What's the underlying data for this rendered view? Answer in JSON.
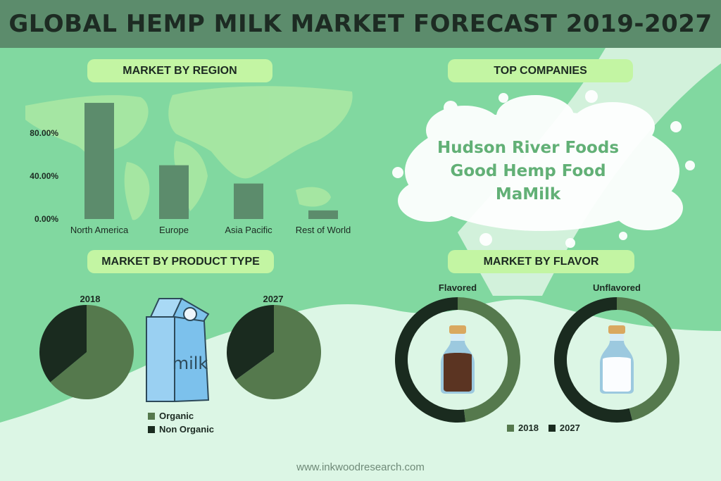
{
  "title": "GLOBAL HEMP MILK MARKET FORECAST 2019-2027",
  "colors": {
    "header_bg": "#5c8c6c",
    "background": "#81d8a0",
    "pill_bg": "#c3f5a3",
    "bar": "#5c8c6c",
    "organic": "#55794d",
    "non_organic": "#1a2b1f",
    "company_text": "#62b076"
  },
  "sections": {
    "region": "MARKET BY REGION",
    "companies": "TOP COMPANIES",
    "product_type": "MARKET BY PRODUCT TYPE",
    "flavor": "MARKET BY FLAVOR"
  },
  "top_companies": [
    "Hudson River Foods",
    "Good Hemp Food",
    "MaMilk"
  ],
  "milk_carton_text": "milk",
  "product_legend": [
    "Organic",
    "Non Organic"
  ],
  "flavor_legend": [
    "2018",
    "2027"
  ],
  "footer": "www.inkwoodresearch.com",
  "chart_data": [
    {
      "type": "bar",
      "title": "MARKET BY REGION",
      "categories": [
        "North America",
        "Europe",
        "Asia Pacific",
        "Rest of World"
      ],
      "values": [
        108,
        50,
        33,
        8
      ],
      "ylim": [
        0,
        110
      ],
      "yticks": [
        "0.00%",
        "40.00%",
        "80.00%"
      ],
      "ytick_values": [
        0,
        40,
        80
      ],
      "grid": false
    },
    {
      "type": "pie",
      "title": "2018",
      "labels": [
        "Organic",
        "Non Organic"
      ],
      "values": [
        64,
        36
      ]
    },
    {
      "type": "pie",
      "title": "2027",
      "labels": [
        "Organic",
        "Non Organic"
      ],
      "values": [
        65,
        35
      ]
    },
    {
      "type": "pie",
      "title": "Flavored",
      "labels": [
        "2018",
        "2027"
      ],
      "values": [
        48,
        52
      ]
    },
    {
      "type": "pie",
      "title": "Unflavored",
      "labels": [
        "2018",
        "2027"
      ],
      "values": [
        46,
        54
      ]
    }
  ]
}
